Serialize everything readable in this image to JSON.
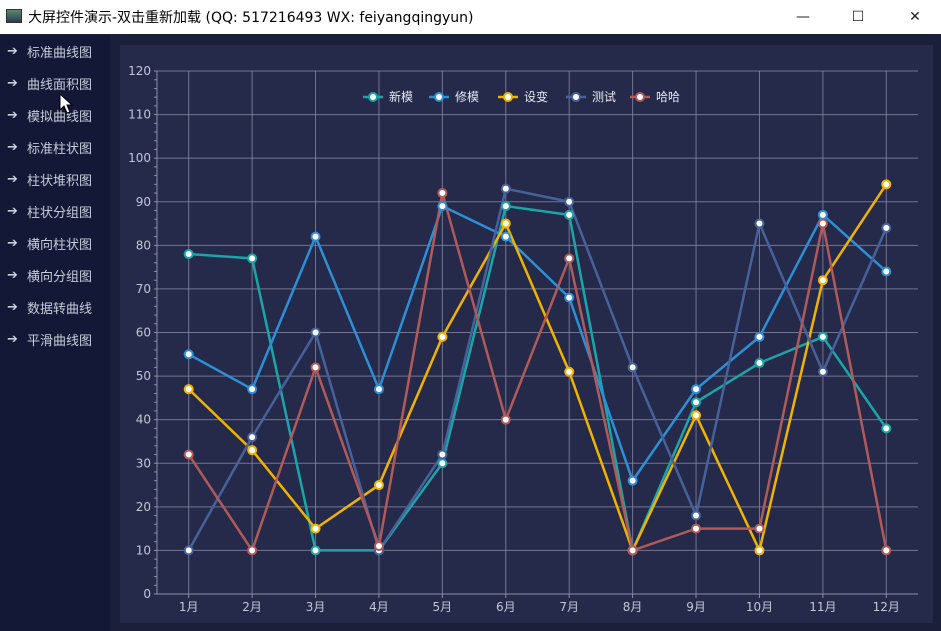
{
  "window": {
    "title": "大屏控件演示-双击重新加载 (QQ: 517216493  WX: feiyangqingyun)",
    "minimize_glyph": "—",
    "maximize_glyph": "☐",
    "close_glyph": "✕"
  },
  "sidebar": {
    "items": [
      {
        "label": "标准曲线图",
        "active": true
      },
      {
        "label": "曲线面积图",
        "active": true
      },
      {
        "label": "模拟曲线图",
        "active": false
      },
      {
        "label": "标准柱状图",
        "active": false
      },
      {
        "label": "柱状堆积图",
        "active": false
      },
      {
        "label": "柱状分组图",
        "active": false
      },
      {
        "label": "横向柱状图",
        "active": false
      },
      {
        "label": "横向分组图",
        "active": false
      },
      {
        "label": "数据转曲线",
        "active": false
      },
      {
        "label": "平滑曲线图",
        "active": false
      }
    ],
    "arrow_glyph": "➔"
  },
  "chart_data": {
    "type": "line",
    "categories": [
      "1月",
      "2月",
      "3月",
      "4月",
      "5月",
      "6月",
      "7月",
      "8月",
      "9月",
      "10月",
      "11月",
      "12月"
    ],
    "ylim": [
      0,
      120
    ],
    "yticks": [
      0,
      10,
      20,
      30,
      40,
      50,
      60,
      70,
      80,
      90,
      100,
      110,
      120
    ],
    "grid": true,
    "legend_position": "top-center",
    "series": [
      {
        "name": "新模",
        "color": "#1aa6a8",
        "values": [
          78,
          77,
          10,
          10,
          30,
          89,
          87,
          10,
          44,
          53,
          59,
          38
        ]
      },
      {
        "name": "修模",
        "color": "#2d8fd6",
        "values": [
          55,
          47,
          82,
          47,
          89,
          82,
          68,
          26,
          47,
          59,
          87,
          74
        ]
      },
      {
        "name": "设变",
        "color": "#f0b400",
        "values": [
          47,
          33,
          15,
          25,
          59,
          85,
          51,
          10,
          41,
          10,
          72,
          94
        ]
      },
      {
        "name": "测试",
        "color": "#46629a",
        "values": [
          10,
          36,
          60,
          10,
          32,
          93,
          90,
          52,
          18,
          85,
          51,
          84
        ]
      },
      {
        "name": "哈哈",
        "color": "#b05a5a",
        "values": [
          32,
          10,
          52,
          11,
          92,
          40,
          77,
          10,
          15,
          15,
          85,
          10
        ]
      }
    ]
  }
}
